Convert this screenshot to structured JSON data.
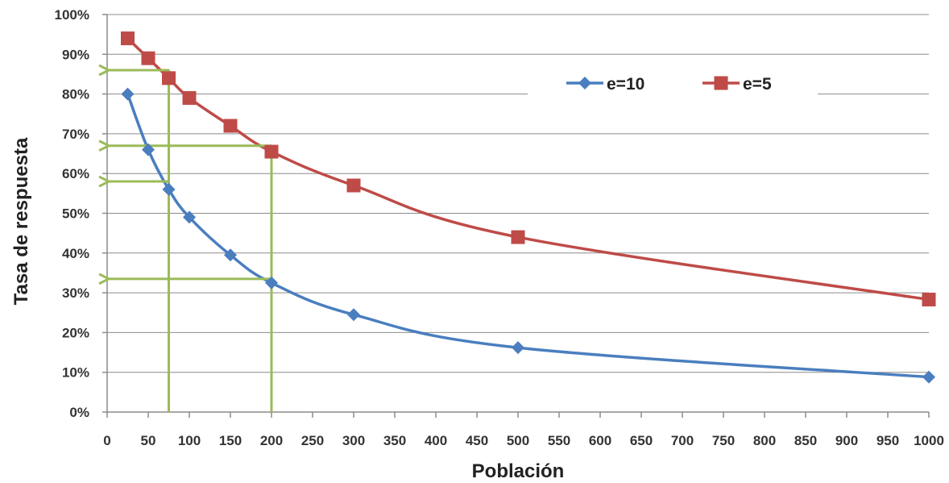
{
  "chart_data": {
    "type": "line",
    "title": "",
    "xlabel": "Población",
    "ylabel": "Tasa de respuesta",
    "xlim": [
      0,
      1000
    ],
    "ylim": [
      0,
      100
    ],
    "x_ticks": [
      "0",
      "50",
      "100",
      "150",
      "200",
      "250",
      "300",
      "350",
      "400",
      "450",
      "500",
      "550",
      "600",
      "650",
      "700",
      "750",
      "800",
      "850",
      "900",
      "950",
      "1000"
    ],
    "y_ticks": [
      "0%",
      "10%",
      "20%",
      "30%",
      "40%",
      "50%",
      "60%",
      "70%",
      "80%",
      "90%",
      "100%"
    ],
    "grid": true,
    "legend_position": "top-right",
    "series": [
      {
        "name": "e=10",
        "color": "#4a7ebf",
        "marker": "diamond",
        "x": [
          25,
          50,
          75,
          100,
          150,
          200,
          300,
          500,
          1000
        ],
        "y": [
          80,
          66,
          56,
          49,
          39.5,
          32.5,
          24.5,
          16.2,
          8.8
        ]
      },
      {
        "name": "e=5",
        "color": "#be4b48",
        "marker": "square",
        "x": [
          25,
          50,
          75,
          100,
          150,
          200,
          300,
          500,
          1000
        ],
        "y": [
          94,
          89,
          84,
          79,
          72,
          65.5,
          57,
          44,
          28.3
        ]
      }
    ],
    "annotations": {
      "color": "#9bbb59",
      "vertical_lines_x": [
        75,
        200
      ],
      "horizontal_arrows": [
        {
          "x_from": 75,
          "y": 86
        },
        {
          "x_from": 200,
          "y": 67
        },
        {
          "x_from": 75,
          "y": 58
        },
        {
          "x_from": 200,
          "y": 33.5
        }
      ]
    }
  }
}
